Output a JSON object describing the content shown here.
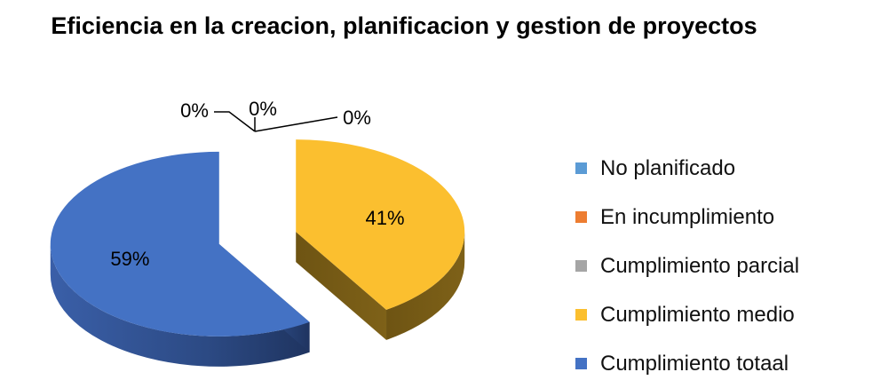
{
  "chart_data": {
    "type": "pie",
    "title": "Eficiencia en la creacion, planificacion y gestion de proyectos",
    "series": [
      {
        "name": "No planificado",
        "value": 0,
        "label": "0%",
        "color": "#5B9BD5"
      },
      {
        "name": "En incumplimiento",
        "value": 0,
        "label": "0%",
        "color": "#ED7D31"
      },
      {
        "name": "Cumplimiento parcial",
        "value": 0,
        "label": "0%",
        "color": "#A5A5A5"
      },
      {
        "name": "Cumplimiento medio",
        "value": 41,
        "label": "41%",
        "color": "#FBBF2F"
      },
      {
        "name": "Cumplimiento totaal",
        "value": 59,
        "label": "59%",
        "color": "#4472C4"
      }
    ],
    "legend_position": "right",
    "style": "3d-exploded"
  }
}
